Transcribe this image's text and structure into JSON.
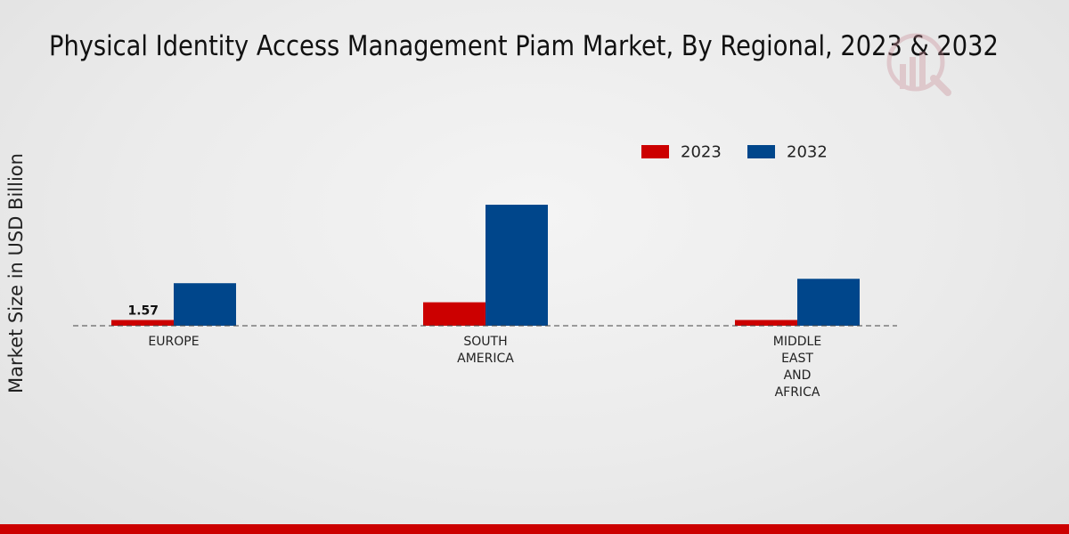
{
  "chart_data": {
    "type": "bar",
    "title": "Physical Identity Access Management Piam Market, By Regional, 2023 & 2032",
    "xlabel": "",
    "ylabel": "Market Size in USD Billion",
    "categories": [
      [
        "EUROPE"
      ],
      [
        "SOUTH",
        "AMERICA"
      ],
      [
        "MIDDLE",
        "EAST",
        "AND",
        "AFRICA"
      ]
    ],
    "series": [
      {
        "name": "2023",
        "color": "#cc0000",
        "values": [
          1.57,
          6.4,
          1.57
        ]
      },
      {
        "name": "2032",
        "color": "#00468b",
        "values": [
          11.6,
          33.0,
          12.8
        ]
      }
    ],
    "data_labels": [
      {
        "series": 0,
        "category": 0,
        "text": "1.57"
      }
    ],
    "ylim": [
      0,
      50
    ],
    "grid": false,
    "legend_position": "top-right",
    "baseline_style": "dashed"
  },
  "theme": {
    "bottom_bar_color": "#cc0000",
    "watermark_color": "#d9b3b8"
  }
}
